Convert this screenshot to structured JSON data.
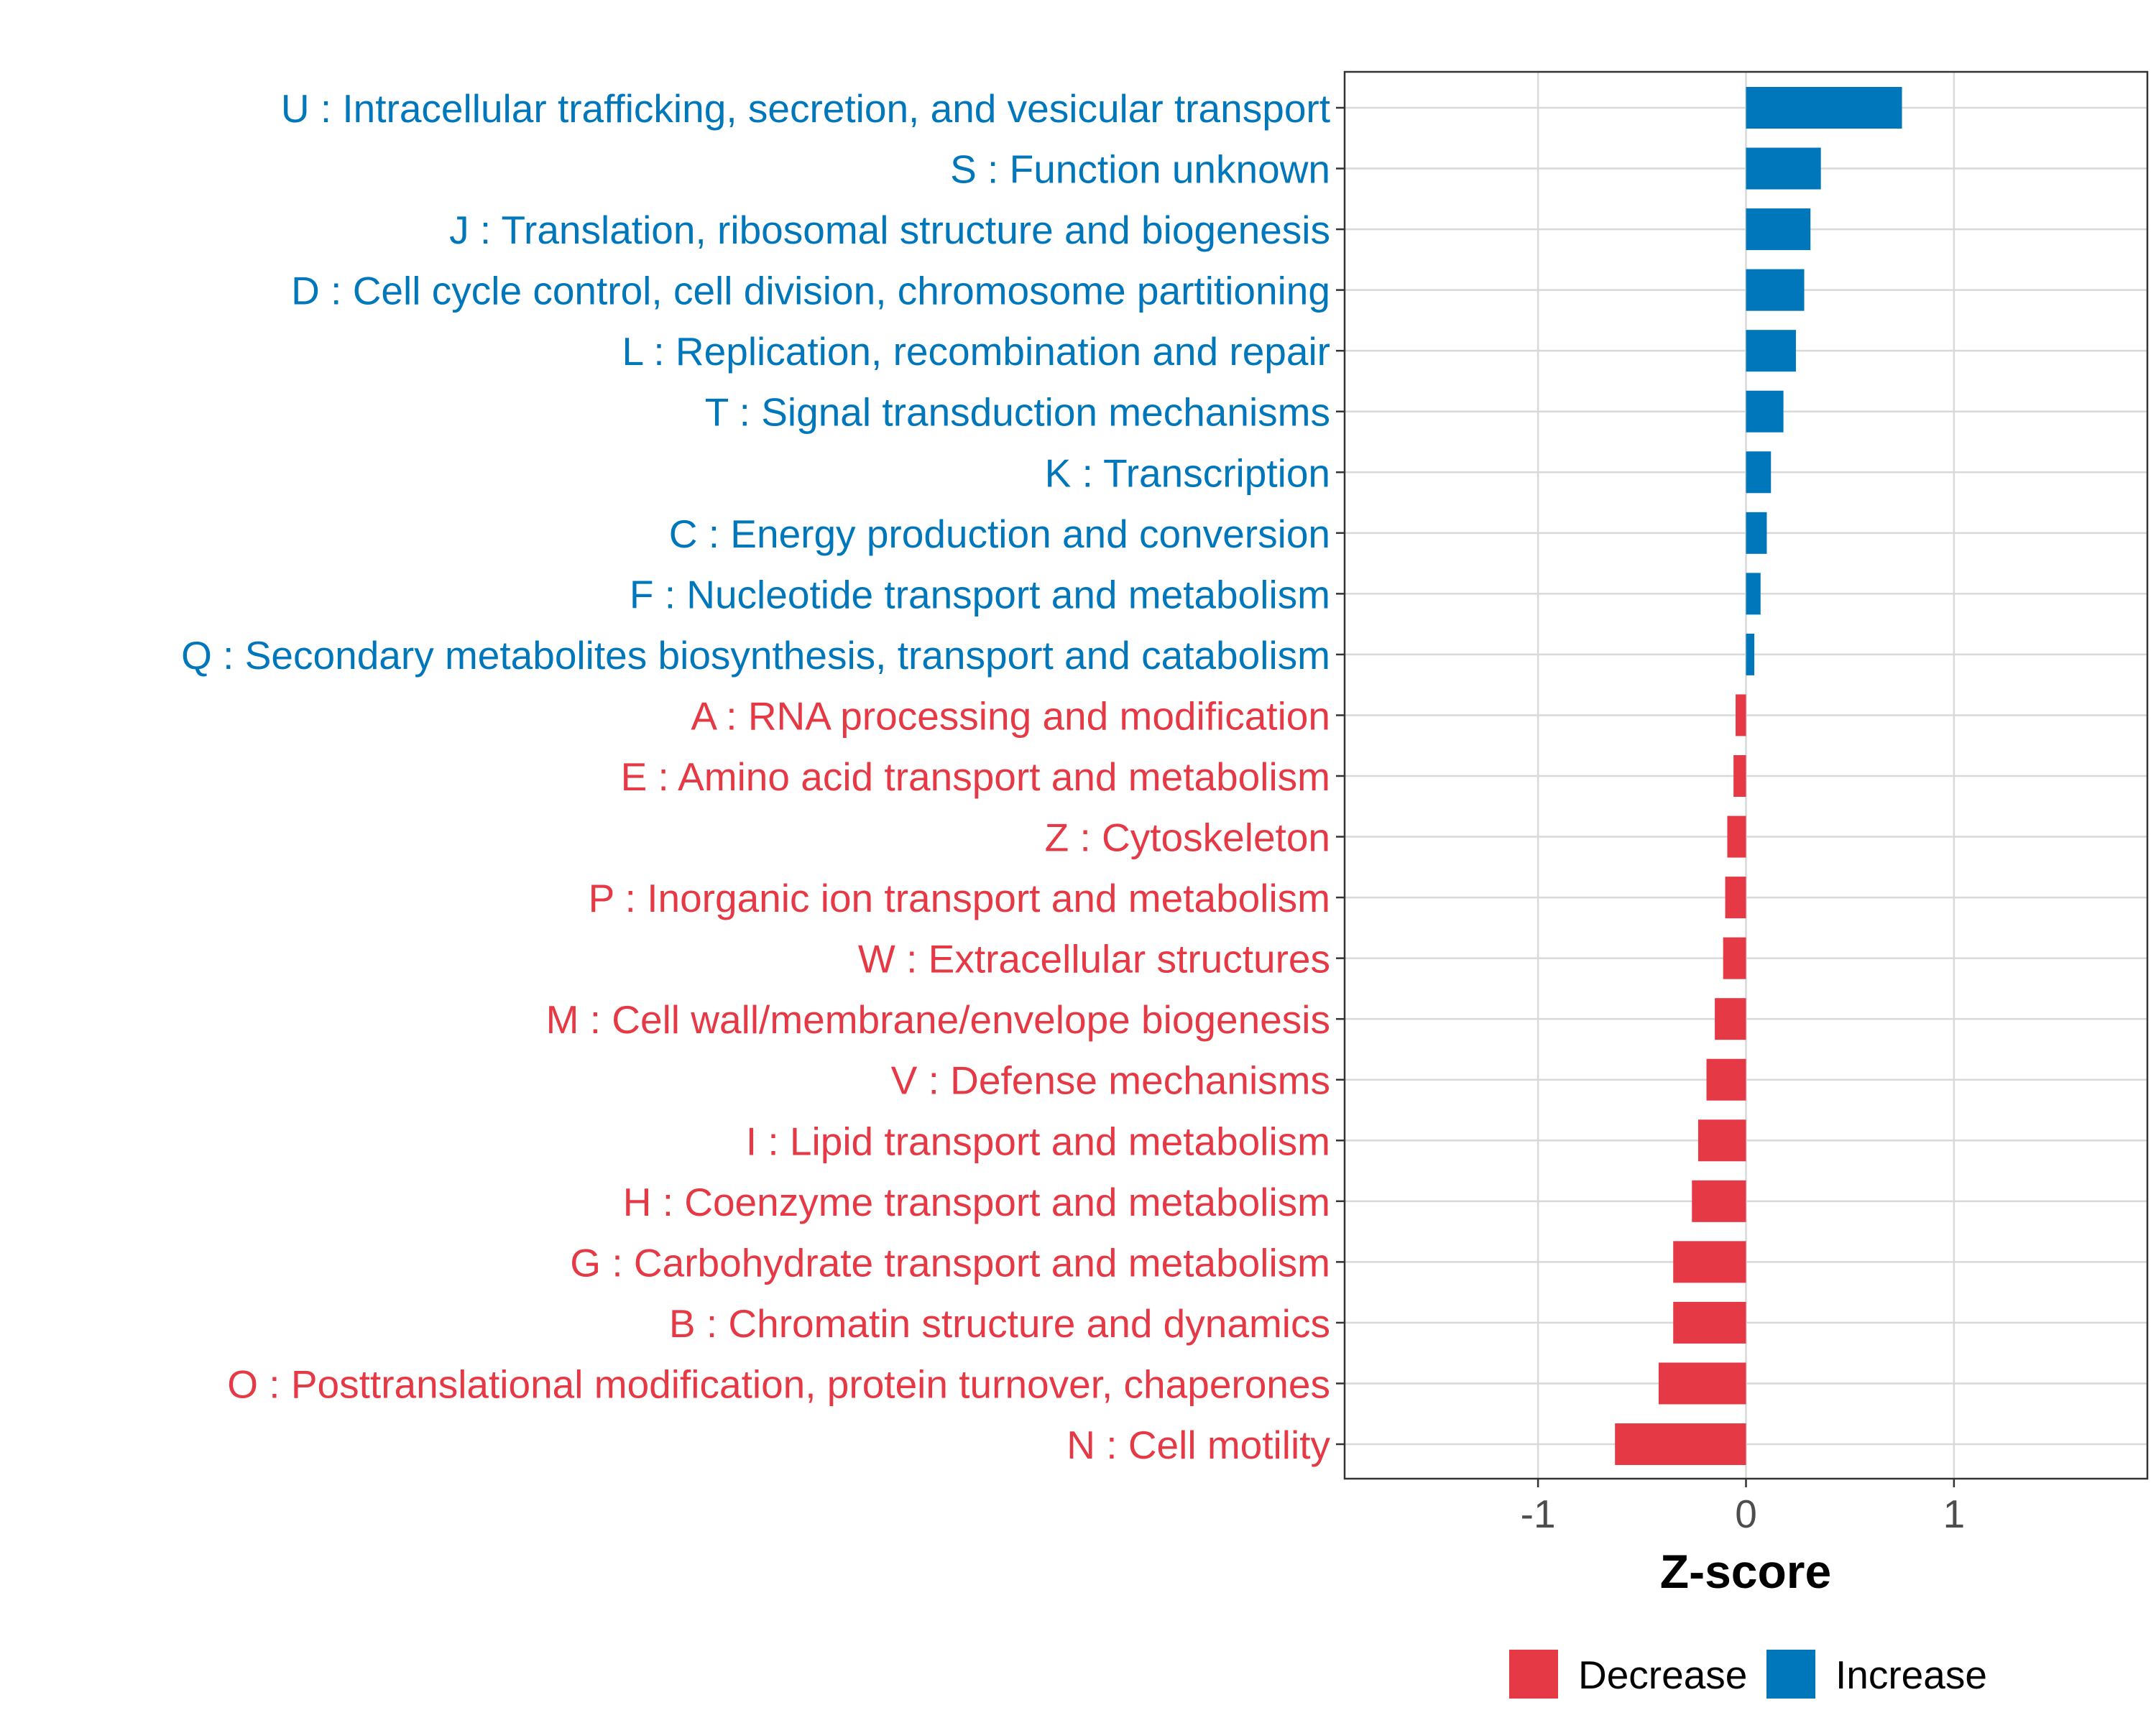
{
  "chart_data": {
    "type": "bar",
    "orientation": "horizontal",
    "title": "",
    "xlabel": "Z-score",
    "ylabel": "",
    "xlim": [
      -1.93,
      1.93
    ],
    "xticks": [
      {
        "value": -1,
        "label": "-1"
      },
      {
        "value": 0,
        "label": "0"
      },
      {
        "value": 1,
        "label": "1"
      }
    ],
    "grid": true,
    "legend_position": "bottom",
    "colors": {
      "Increase": "#0077BB",
      "Decrease": "#E63946"
    },
    "legend": [
      {
        "name": "Decrease",
        "color": "#E63946"
      },
      {
        "name": "Increase",
        "color": "#0077BB"
      }
    ],
    "categories": [
      {
        "label": "U : Intracellular trafficking, secretion, and vesicular transport",
        "value": 0.75,
        "group": "Increase"
      },
      {
        "label": "S : Function unknown",
        "value": 0.36,
        "group": "Increase"
      },
      {
        "label": "J : Translation, ribosomal structure and biogenesis",
        "value": 0.31,
        "group": "Increase"
      },
      {
        "label": "D : Cell cycle control, cell division, chromosome partitioning",
        "value": 0.28,
        "group": "Increase"
      },
      {
        "label": "L : Replication, recombination and repair",
        "value": 0.24,
        "group": "Increase"
      },
      {
        "label": "T : Signal transduction mechanisms",
        "value": 0.18,
        "group": "Increase"
      },
      {
        "label": "K : Transcription",
        "value": 0.12,
        "group": "Increase"
      },
      {
        "label": "C : Energy production and conversion",
        "value": 0.1,
        "group": "Increase"
      },
      {
        "label": "F : Nucleotide transport and metabolism",
        "value": 0.07,
        "group": "Increase"
      },
      {
        "label": "Q : Secondary metabolites biosynthesis, transport and catabolism",
        "value": 0.04,
        "group": "Increase"
      },
      {
        "label": "A : RNA processing and modification",
        "value": -0.05,
        "group": "Decrease"
      },
      {
        "label": "E : Amino acid transport and metabolism",
        "value": -0.06,
        "group": "Decrease"
      },
      {
        "label": "Z : Cytoskeleton",
        "value": -0.09,
        "group": "Decrease"
      },
      {
        "label": "P : Inorganic ion transport and metabolism",
        "value": -0.1,
        "group": "Decrease"
      },
      {
        "label": "W : Extracellular structures",
        "value": -0.11,
        "group": "Decrease"
      },
      {
        "label": "M : Cell wall/membrane/envelope biogenesis",
        "value": -0.15,
        "group": "Decrease"
      },
      {
        "label": "V : Defense mechanisms",
        "value": -0.19,
        "group": "Decrease"
      },
      {
        "label": "I : Lipid transport and metabolism",
        "value": -0.23,
        "group": "Decrease"
      },
      {
        "label": "H : Coenzyme transport and metabolism",
        "value": -0.26,
        "group": "Decrease"
      },
      {
        "label": "G : Carbohydrate transport and metabolism",
        "value": -0.35,
        "group": "Decrease"
      },
      {
        "label": "B : Chromatin structure and dynamics",
        "value": -0.35,
        "group": "Decrease"
      },
      {
        "label": "O : Posttranslational modification, protein turnover, chaperones",
        "value": -0.42,
        "group": "Decrease"
      },
      {
        "label": "N : Cell motility",
        "value": -0.63,
        "group": "Decrease"
      }
    ]
  }
}
